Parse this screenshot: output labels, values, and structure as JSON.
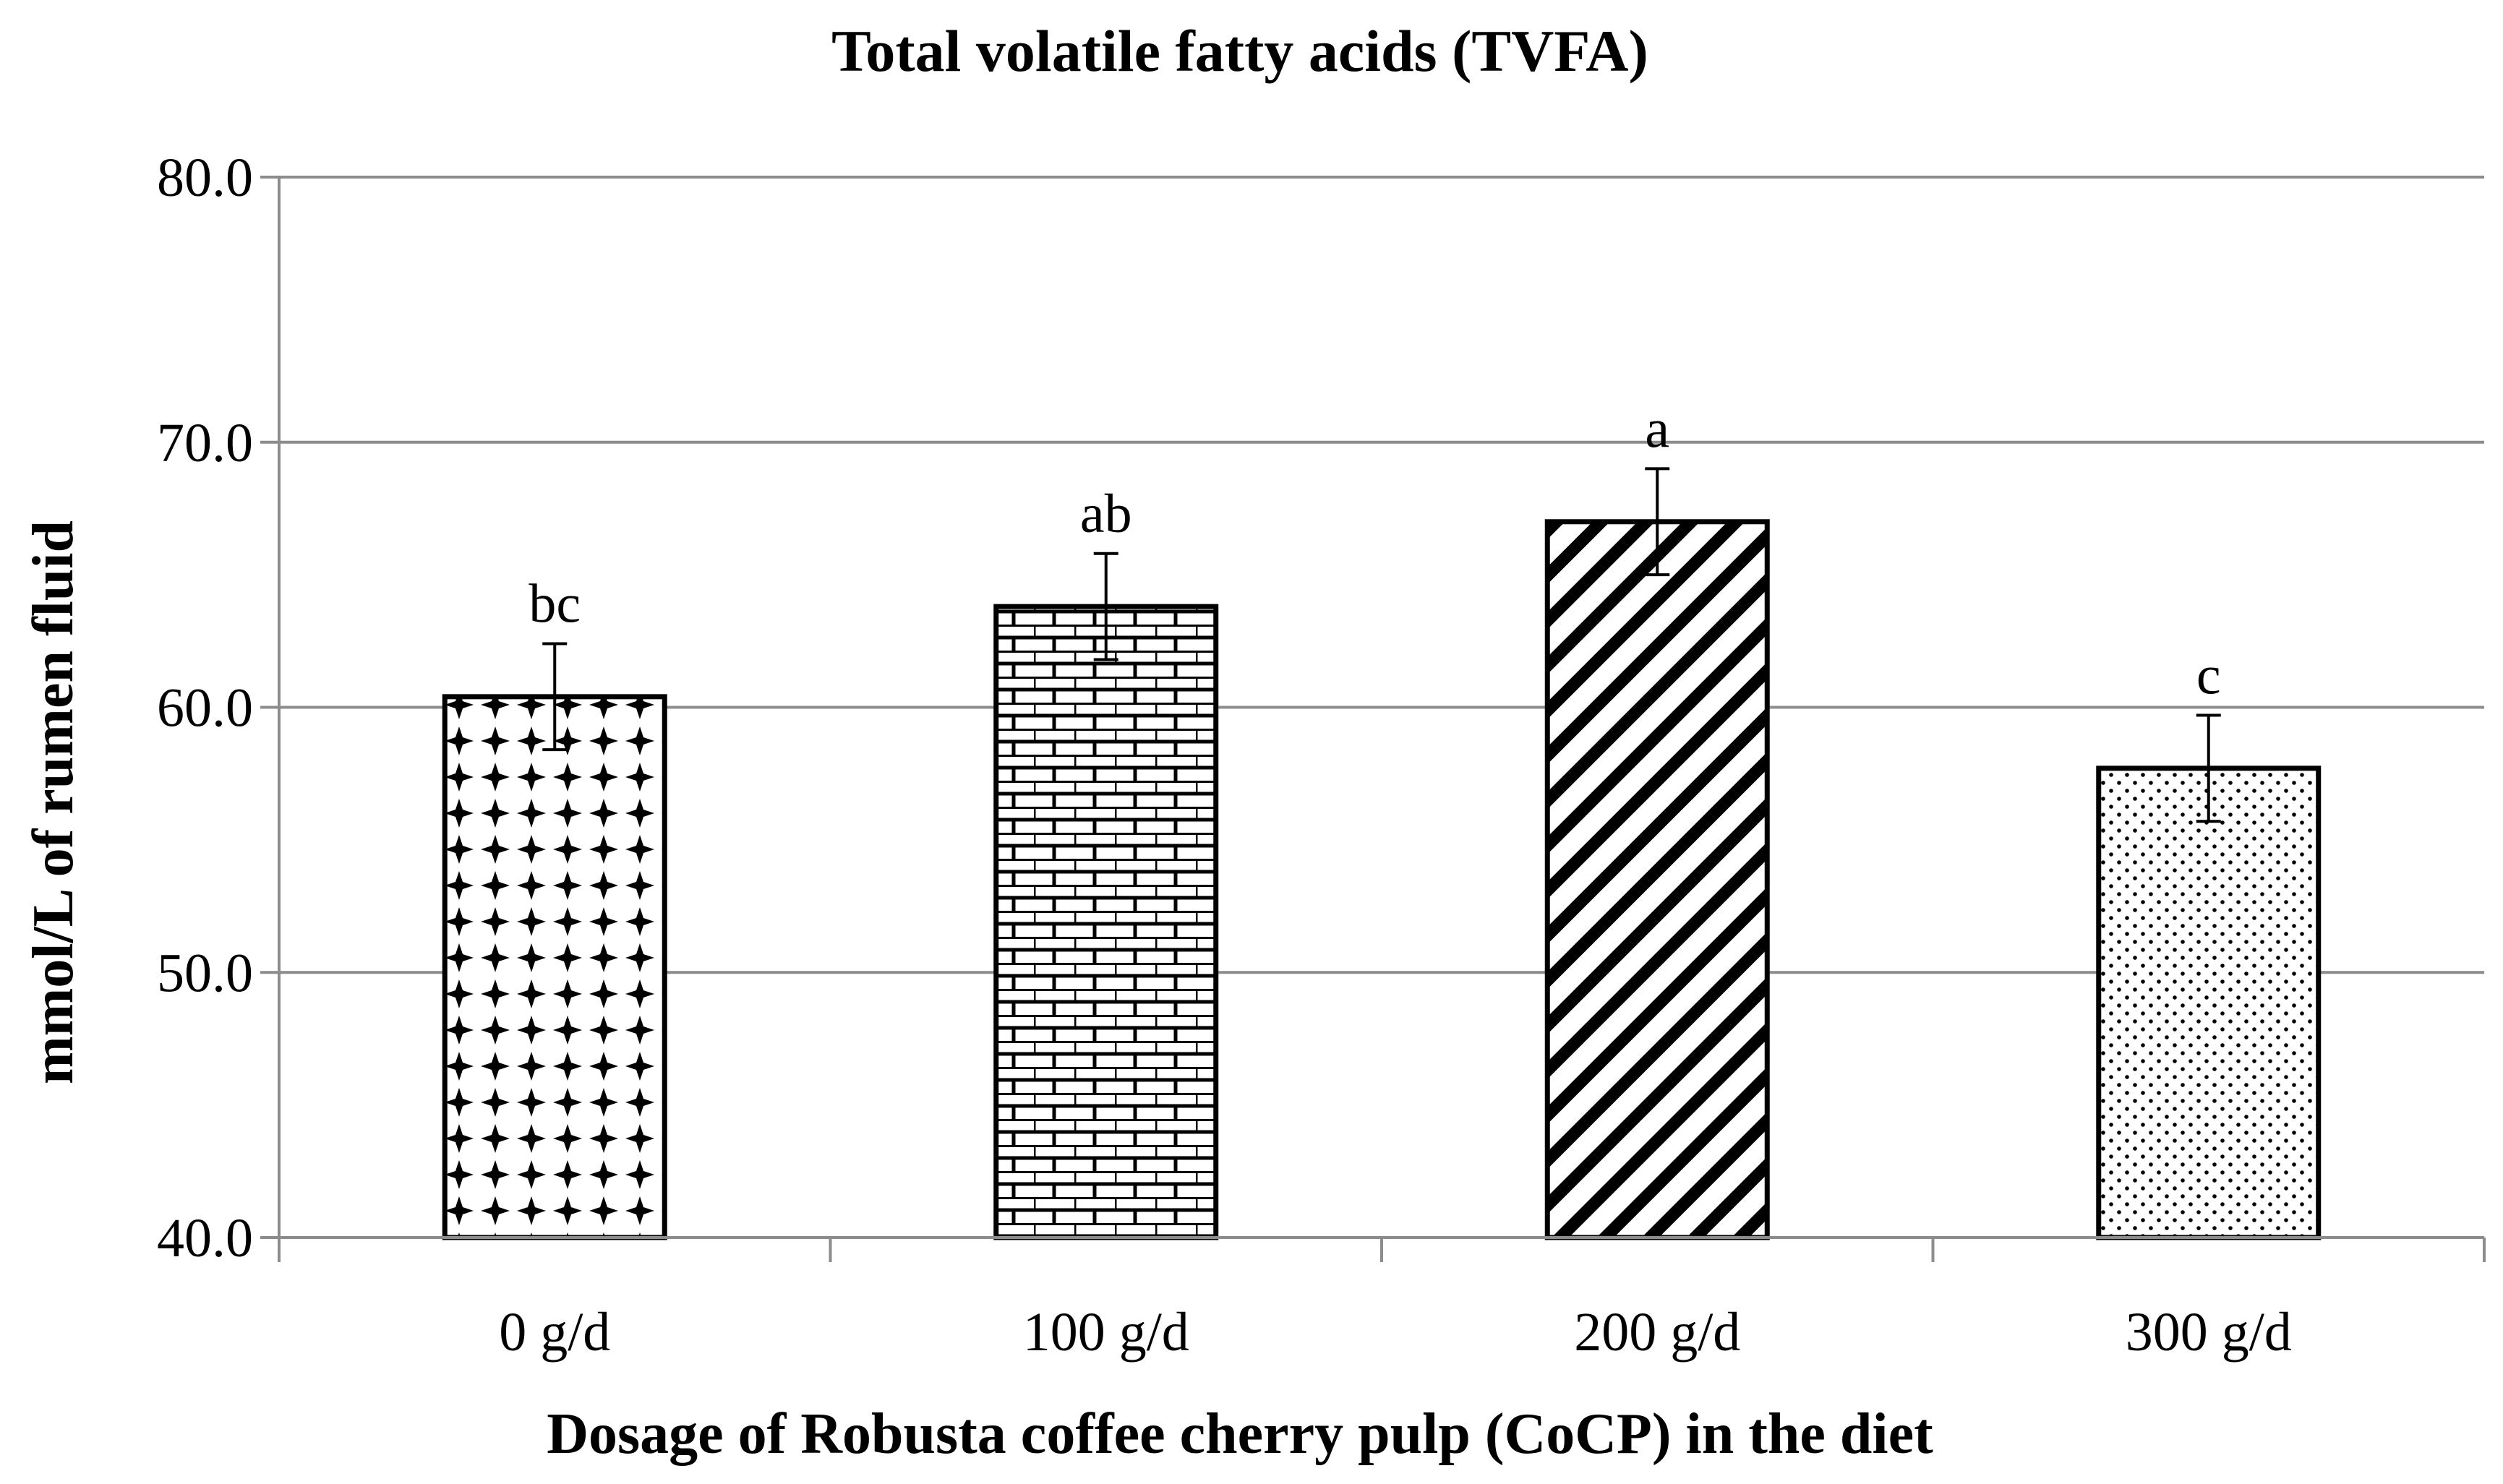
{
  "chart_data": {
    "type": "bar",
    "title": "Total volatile fatty acids (TVFA)",
    "xlabel": "Dosage of Robusta coffee cherry pulp (CoCP) in the diet",
    "ylabel": "mmol/L of rumen fluid",
    "ylim": [
      40.0,
      80.0
    ],
    "yticks": [
      "40.0",
      "50.0",
      "60.0",
      "70.0",
      "80.0"
    ],
    "grid": true,
    "categories": [
      "0 g/d",
      "100 g/d",
      "200 g/d",
      "300 g/d"
    ],
    "values": [
      60.4,
      63.8,
      67.0,
      57.7
    ],
    "errors": [
      2.0,
      2.0,
      2.0,
      2.0
    ],
    "significance_labels": [
      "bc",
      "ab",
      "a",
      "c"
    ],
    "bar_patterns": [
      "diamond-dots",
      "brick",
      "diagonal-stripes",
      "fine-dots"
    ]
  }
}
